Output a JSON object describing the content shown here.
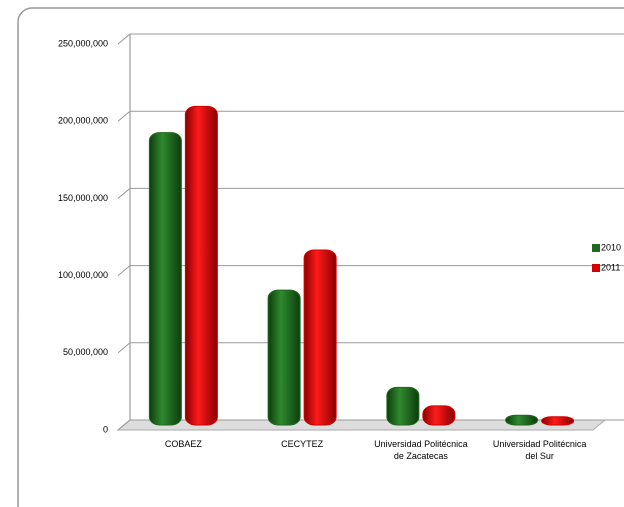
{
  "chart_data": {
    "type": "bar",
    "categories": [
      "COBAEZ",
      "CECYTEZ",
      "Universidad Politécnica de Zacatecas",
      "Universidad Politécnica del Sur"
    ],
    "series": [
      {
        "name": "2010",
        "color": "#1f6a1f",
        "values": [
          190000000,
          88000000,
          25000000,
          7000000
        ]
      },
      {
        "name": "2011",
        "color": "#d40000",
        "values": [
          207000000,
          114000000,
          13000000,
          6000000
        ]
      }
    ],
    "ylim": [
      0,
      250000000
    ],
    "yticks": [
      {
        "value": 0,
        "label": "0"
      },
      {
        "value": 50000000,
        "label": "50,000,000"
      },
      {
        "value": 100000000,
        "label": "100,000,000"
      },
      {
        "value": 150000000,
        "label": "150,000,000"
      },
      {
        "value": 200000000,
        "label": "200,000,000"
      },
      {
        "value": 250000000,
        "label": "250,000,000"
      }
    ],
    "grid": true
  }
}
